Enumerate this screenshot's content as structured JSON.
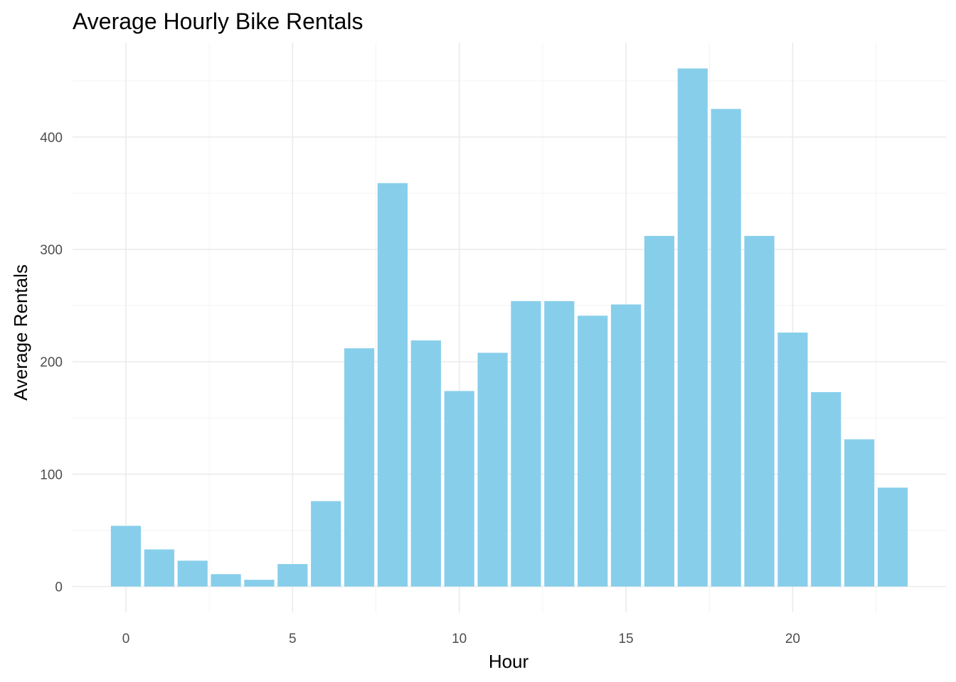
{
  "chart_data": {
    "type": "bar",
    "title": "Average Hourly Bike Rentals",
    "xlabel": "Hour",
    "ylabel": "Average Rentals",
    "x": [
      0,
      1,
      2,
      3,
      4,
      5,
      6,
      7,
      8,
      9,
      10,
      11,
      12,
      13,
      14,
      15,
      16,
      17,
      18,
      19,
      20,
      21,
      22,
      23
    ],
    "values": [
      54,
      33,
      23,
      11,
      6,
      20,
      76,
      212,
      359,
      219,
      174,
      208,
      254,
      254,
      241,
      251,
      312,
      461,
      425,
      312,
      226,
      173,
      131,
      88
    ],
    "xticks": [
      0,
      5,
      10,
      15,
      20
    ],
    "yticks": [
      0,
      100,
      200,
      300,
      400
    ],
    "xlim": [
      -1.6,
      24.6
    ],
    "ylim": [
      -23,
      484
    ],
    "bar_color": "#87ceeb",
    "grid": true,
    "legend": "none"
  }
}
